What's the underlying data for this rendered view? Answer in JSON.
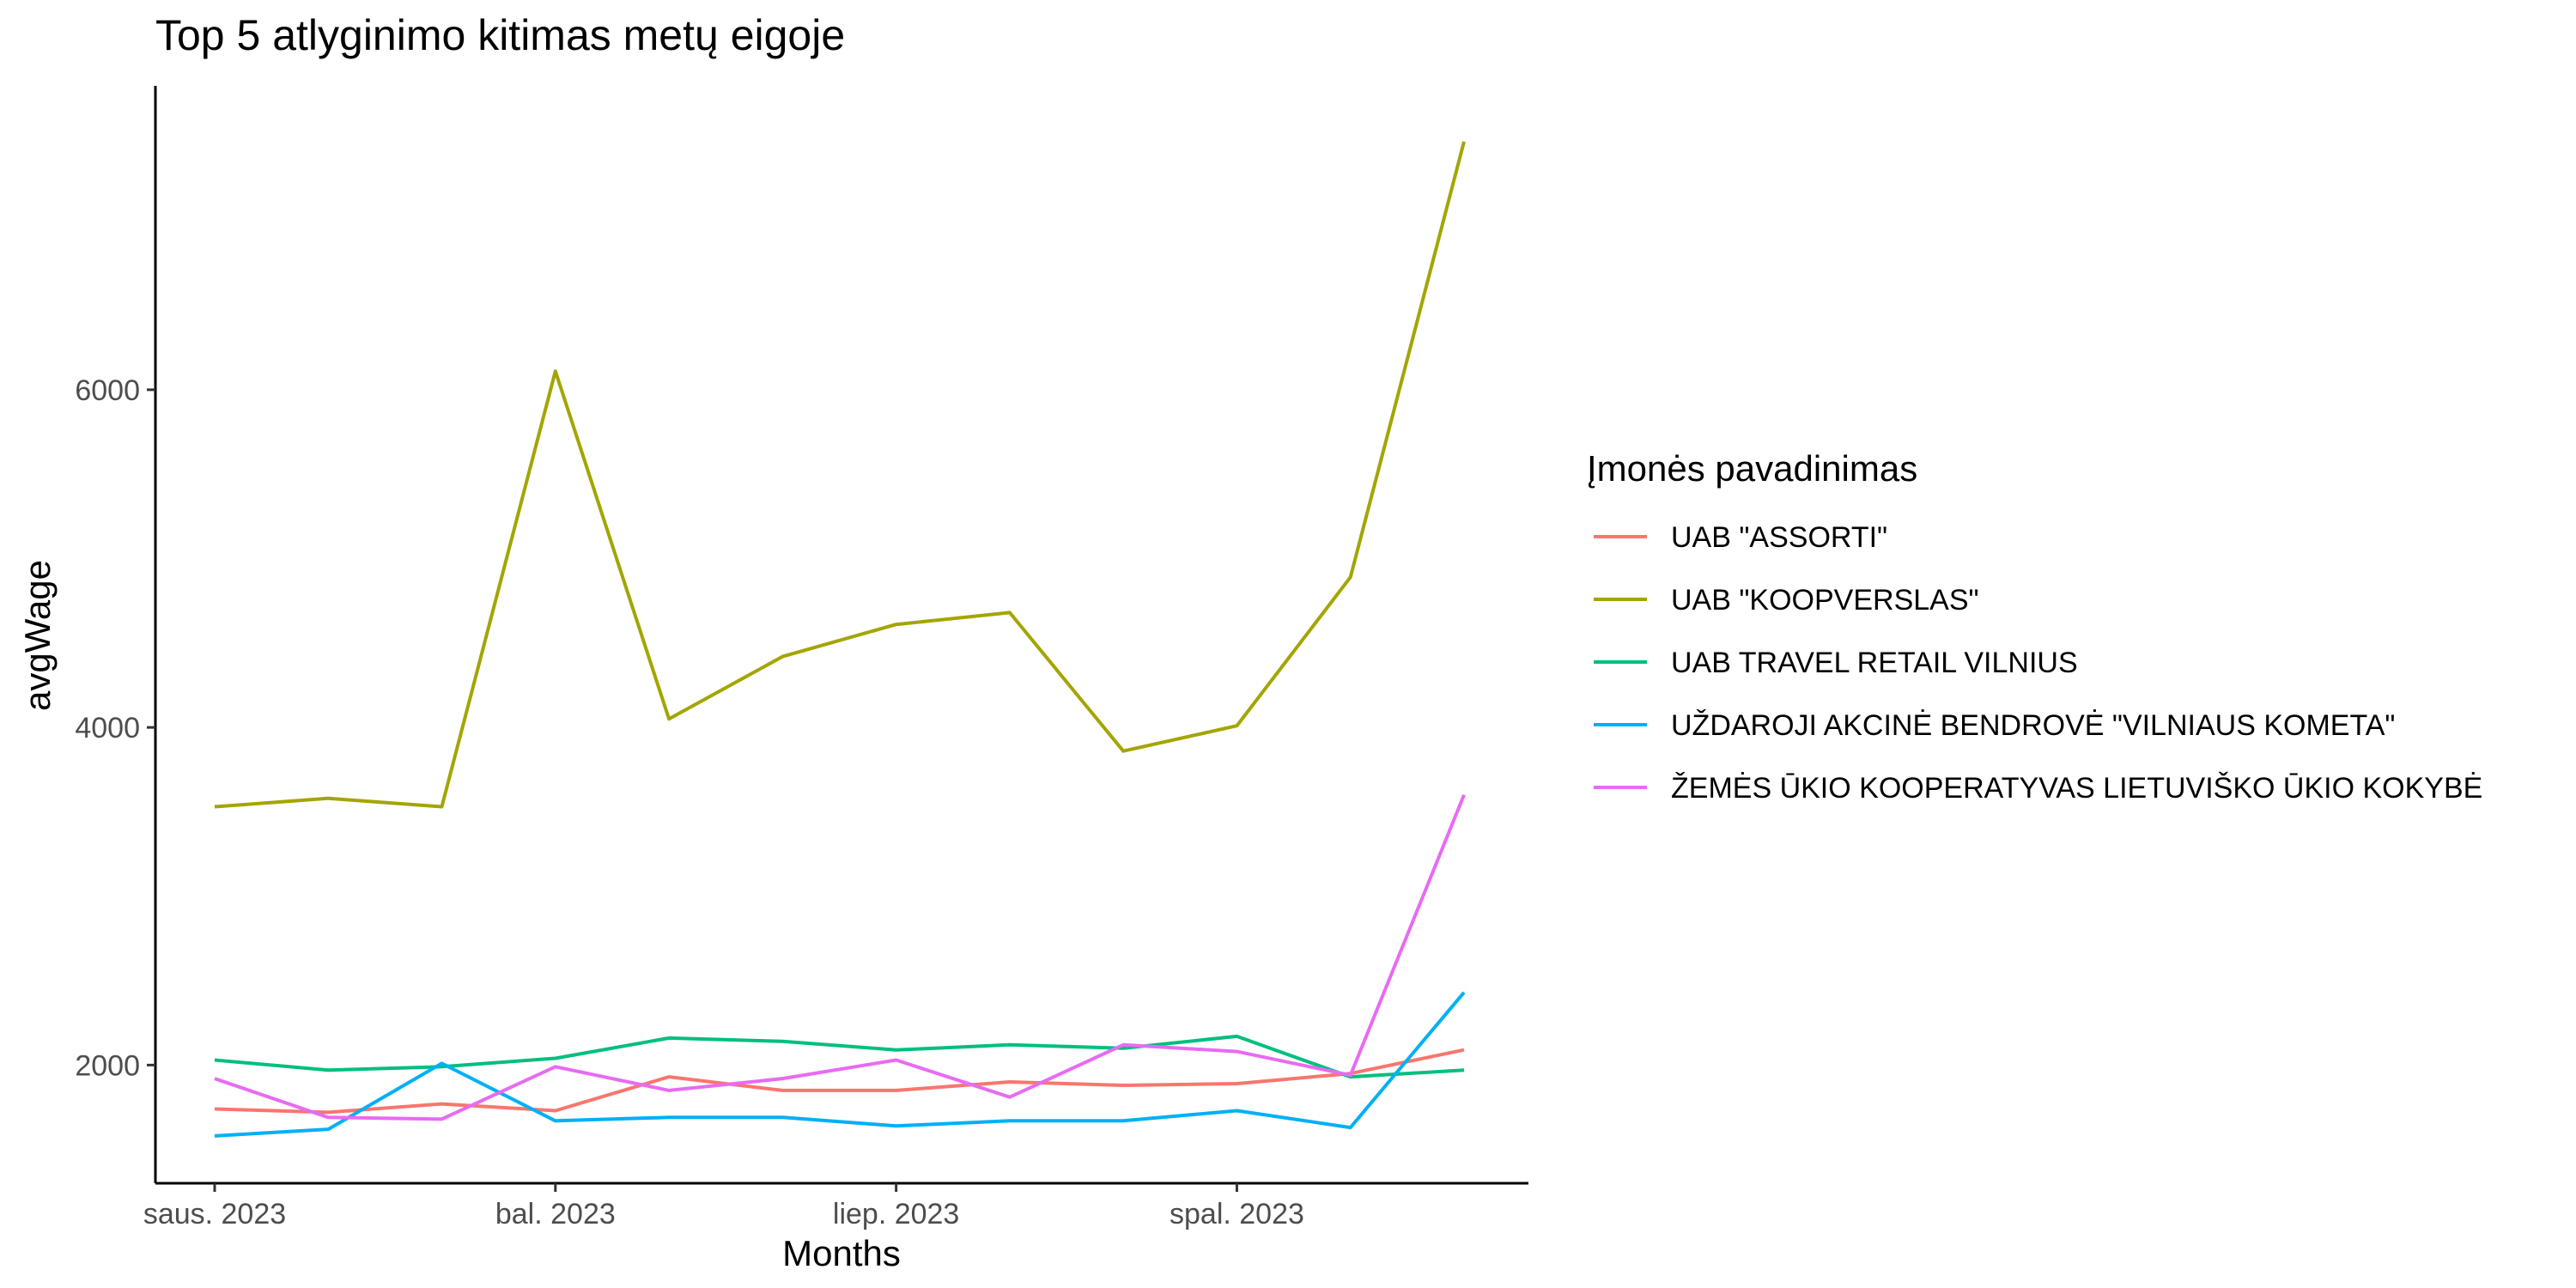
{
  "chart_data": {
    "type": "line",
    "title": "Top 5 atlyginimo kitimas metų eigoje",
    "xlabel": "Months",
    "ylabel": "avgWage",
    "x": [
      "2023-01",
      "2023-02",
      "2023-03",
      "2023-04",
      "2023-05",
      "2023-06",
      "2023-07",
      "2023-08",
      "2023-09",
      "2023-10",
      "2023-11",
      "2023-12"
    ],
    "x_ticks": [
      {
        "x": "2023-01",
        "label": "saus. 2023"
      },
      {
        "x": "2023-04",
        "label": "bal. 2023"
      },
      {
        "x": "2023-07",
        "label": "liep. 2023"
      },
      {
        "x": "2023-10",
        "label": "spal. 2023"
      }
    ],
    "y_ticks": [
      2000,
      4000,
      6000
    ],
    "ylim": [
      1300,
      7800
    ],
    "grid": false,
    "legend": {
      "title": "Įmonės pavadinimas",
      "position": "right"
    },
    "series": [
      {
        "name": "UAB \"ASSORTI\"",
        "color": "#F8766D",
        "values": [
          1740,
          1720,
          1770,
          1730,
          1930,
          1850,
          1850,
          1900,
          1880,
          1890,
          1950,
          2090
        ]
      },
      {
        "name": "UAB \"KOOPVERSLAS\"",
        "color": "#A3A500",
        "values": [
          3530,
          3580,
          3530,
          6110,
          4050,
          4420,
          4610,
          4680,
          3860,
          4010,
          4890,
          7470
        ]
      },
      {
        "name": "UAB TRAVEL RETAIL VILNIUS",
        "color": "#00BF7D",
        "values": [
          2030,
          1970,
          1990,
          2040,
          2160,
          2140,
          2090,
          2120,
          2100,
          2170,
          1930,
          1970
        ]
      },
      {
        "name": "UŽDAROJI AKCINĖ BENDROVĖ \"VILNIAUS KOMETA\"",
        "color": "#00B0F6",
        "values": [
          1580,
          1620,
          2010,
          1670,
          1690,
          1690,
          1640,
          1670,
          1670,
          1730,
          1630,
          2430
        ]
      },
      {
        "name": "ŽEMĖS ŪKIO KOOPERATYVAS LIETUVIŠKO ŪKIO KOKYBĖ",
        "color": "#E76BF3",
        "values": [
          1920,
          1690,
          1680,
          1990,
          1850,
          1920,
          2030,
          1810,
          2120,
          2080,
          1940,
          3600
        ]
      }
    ]
  }
}
